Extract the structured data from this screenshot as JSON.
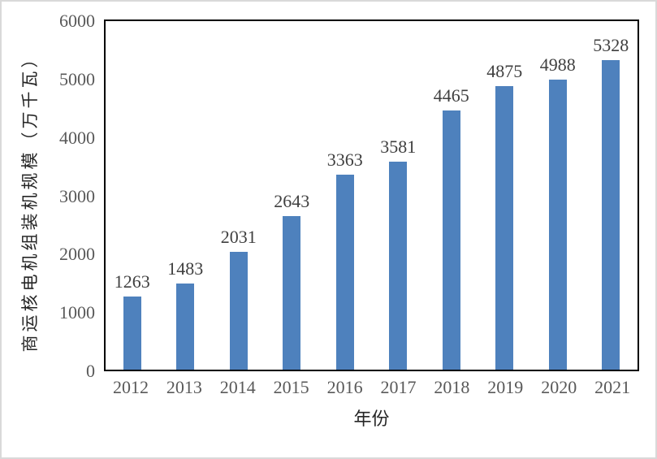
{
  "chart_data": {
    "type": "bar",
    "title": "",
    "categories": [
      "2012",
      "2013",
      "2014",
      "2015",
      "2016",
      "2017",
      "2018",
      "2019",
      "2020",
      "2021"
    ],
    "values": [
      1263,
      1483,
      2031,
      2643,
      3363,
      3581,
      4465,
      4875,
      4988,
      5328
    ],
    "xlabel": "年份",
    "ylabel": "商运核电机组装机规模（万千瓦）",
    "ylim": [
      0,
      6000
    ],
    "yticks": [
      6000,
      5000,
      4000,
      3000,
      2000,
      1000,
      0
    ],
    "grid": false,
    "legend_position": "none",
    "show_data_labels": true
  },
  "colors": {
    "bar": "#4E81BD",
    "tick_label": "#595959",
    "data_label": "#3f3f3f",
    "axis_title": "#262626",
    "plot_border": "#000000",
    "frame_border": "#d9d9d9"
  }
}
